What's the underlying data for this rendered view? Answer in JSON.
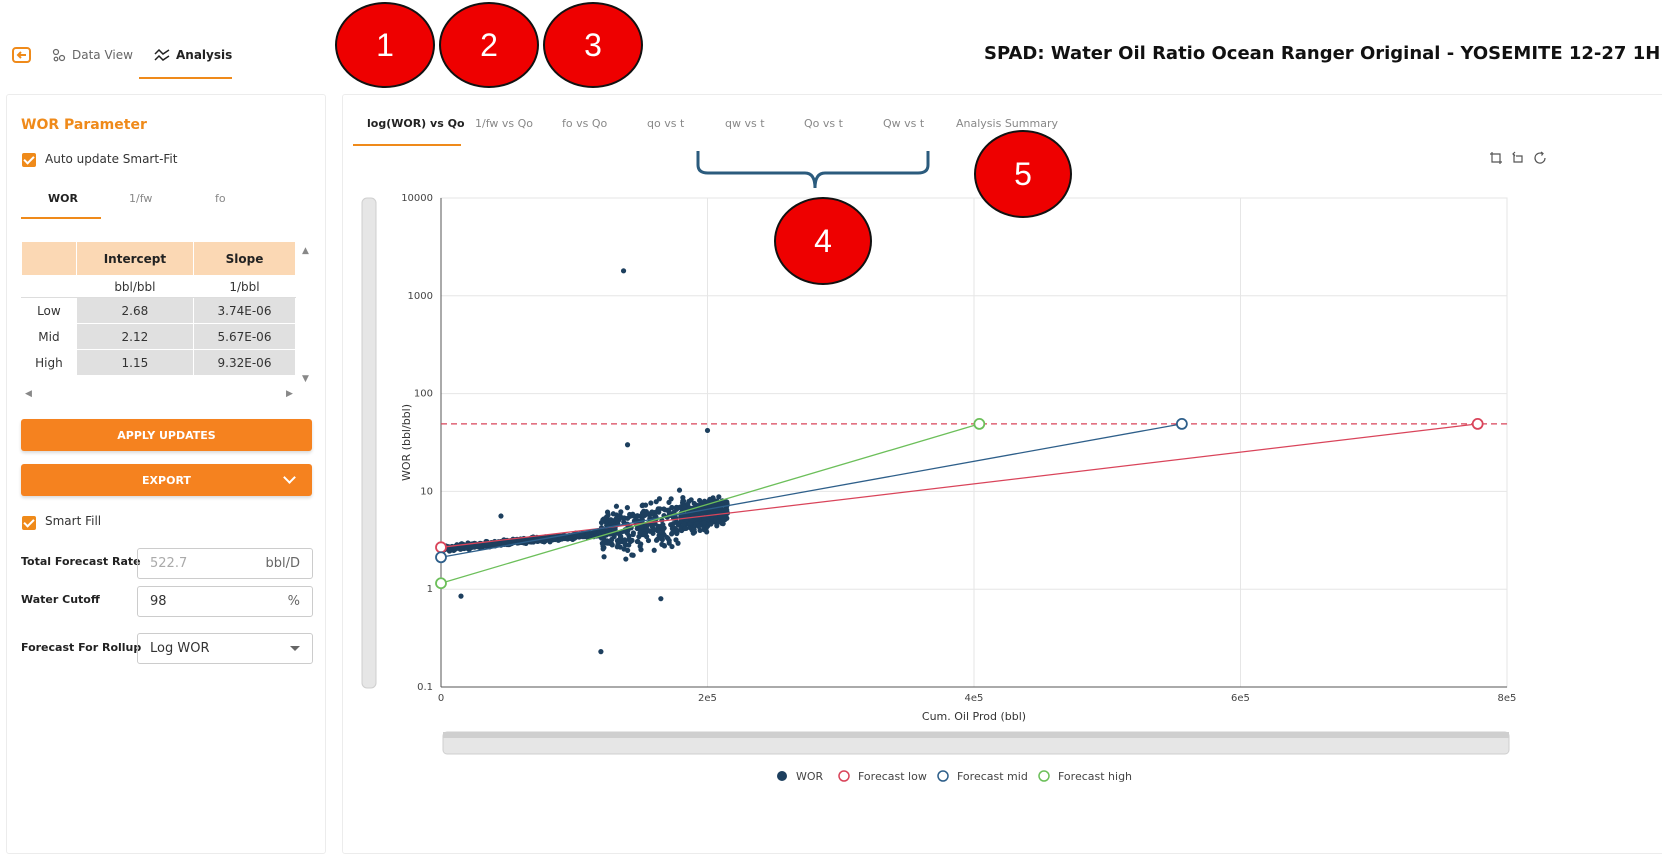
{
  "nav": {
    "data_view_label": "Data View",
    "analysis_label": "Analysis"
  },
  "page_title": "SPAD: Water Oil Ratio Ocean Ranger Original - YOSEMITE 12-27 1H",
  "markers": [
    "1",
    "2",
    "3",
    "4",
    "5"
  ],
  "left": {
    "title": "WOR Parameter",
    "auto_update_label": "Auto update Smart-Fit",
    "subtabs": [
      "WOR",
      "1/fw",
      "fo"
    ],
    "table": {
      "headers": [
        "",
        "Intercept",
        "Slope"
      ],
      "units": [
        "",
        "bbl/bbl",
        "1/bbl"
      ],
      "rows": [
        [
          "Low",
          "2.68",
          "3.74E-06"
        ],
        [
          "Mid",
          "2.12",
          "5.67E-06"
        ],
        [
          "High",
          "1.15",
          "9.32E-06"
        ]
      ]
    },
    "apply_label": "APPLY UPDATES",
    "export_label": "EXPORT",
    "smart_fill_label": "Smart Fill",
    "total_forecast_rate": {
      "label": "Total Forecast Rate",
      "value": "522.7",
      "unit": "bbl/D"
    },
    "water_cutoff": {
      "label": "Water Cutoff",
      "value": "98",
      "unit": "%"
    },
    "forecast_rollup": {
      "label": "Forecast For Rollup",
      "value": "Log WOR"
    }
  },
  "chart_tabs": [
    "log(WOR) vs Qo",
    "1/fw vs Qo",
    "fo vs Qo",
    "qo vs t",
    "qw vs t",
    "Qo vs t",
    "Qw vs t",
    "Analysis Summary"
  ],
  "colors": {
    "accent": "#ef8a1a",
    "wor_points": "#1d3f5e",
    "forecast_low": "#d9445a",
    "forecast_mid": "#2e5f8a",
    "forecast_high": "#6cbf5a",
    "cutoff_line": "#d9445a"
  },
  "chart_data": {
    "type": "scatter",
    "title": "",
    "xlabel": "Cum. Oil Prod (bbl)",
    "ylabel": "WOR (bbl/bbl)",
    "xlim": [
      0,
      800000
    ],
    "ylim": [
      0.1,
      10000
    ],
    "yscale": "log",
    "x_ticks": [
      "0",
      "2e5",
      "4e5",
      "6e5",
      "8e5"
    ],
    "y_ticks": [
      "0.1",
      "1",
      "10",
      "100",
      "1000",
      "10000"
    ],
    "cutoff_wor": 49,
    "series": [
      {
        "name": "WOR",
        "type": "scatter",
        "approx_points": [
          [
            0,
            2.7
          ],
          [
            20000,
            2.8
          ],
          [
            50000,
            3.1
          ],
          [
            80000,
            3.4
          ],
          [
            110000,
            3.7
          ],
          [
            130000,
            3.6
          ],
          [
            140000,
            30
          ],
          [
            137000,
            1800
          ],
          [
            120000,
            0.23
          ],
          [
            150000,
            4.3
          ],
          [
            160000,
            2.5
          ],
          [
            165000,
            0.8
          ],
          [
            180000,
            5.5
          ],
          [
            200000,
            6.5
          ],
          [
            200000,
            42
          ],
          [
            215000,
            6.0
          ],
          [
            15000,
            0.85
          ],
          [
            45000,
            5.6
          ]
        ]
      },
      {
        "name": "Forecast low",
        "type": "line",
        "points": [
          [
            0,
            2.68
          ],
          [
            778000,
            49
          ]
        ]
      },
      {
        "name": "Forecast mid",
        "type": "line",
        "points": [
          [
            0,
            2.12
          ],
          [
            556000,
            49
          ]
        ]
      },
      {
        "name": "Forecast high",
        "type": "line",
        "points": [
          [
            0,
            1.15
          ],
          [
            404000,
            49
          ]
        ]
      }
    ],
    "legend": [
      "WOR",
      "Forecast low",
      "Forecast mid",
      "Forecast high"
    ],
    "legend_position": "bottom-center"
  }
}
